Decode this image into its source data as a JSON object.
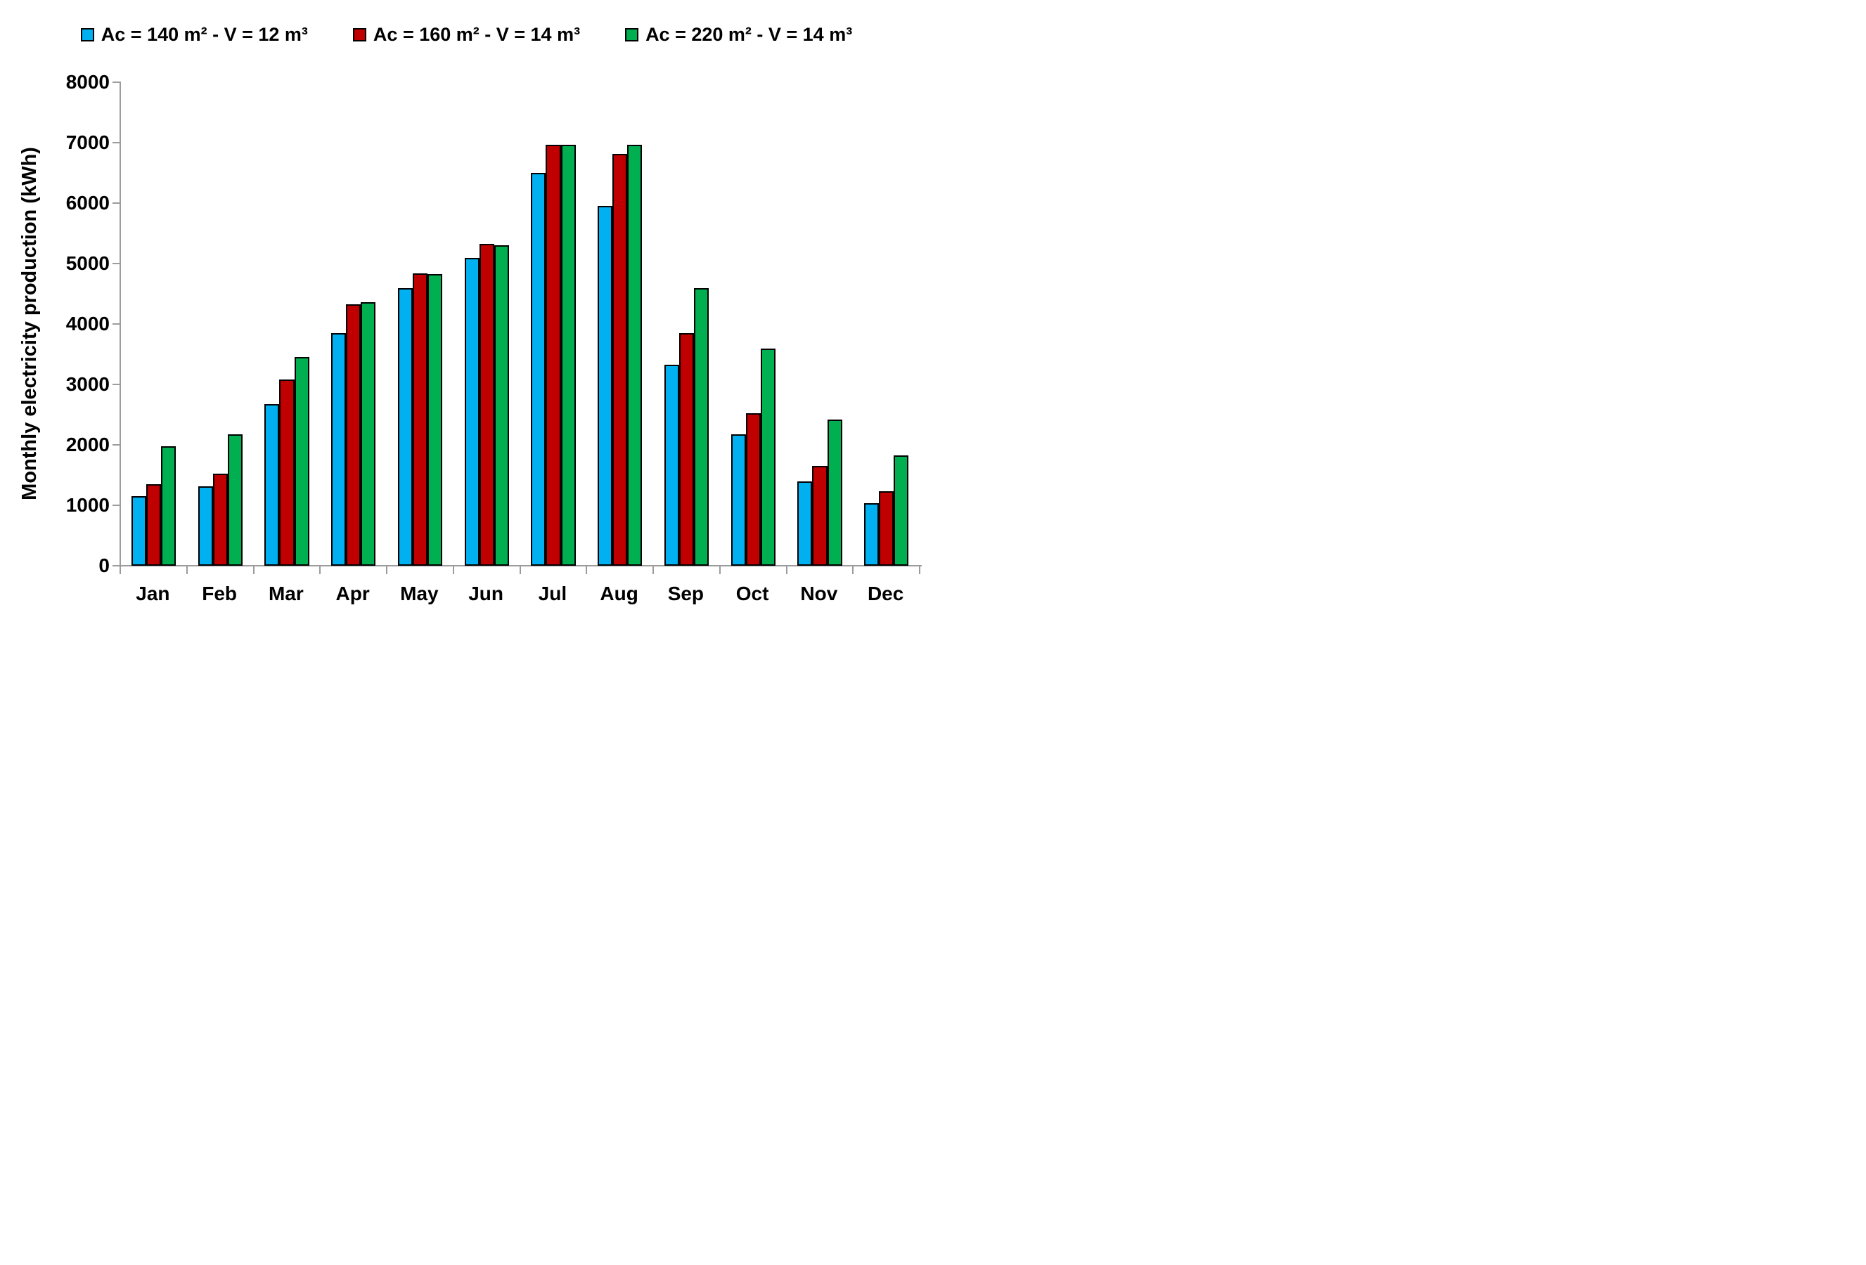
{
  "chart_data": {
    "type": "bar",
    "title": "",
    "xlabel": "",
    "ylabel": "Monthly electricity production (kWh)",
    "ylim": [
      0,
      8000
    ],
    "yticks": [
      0,
      1000,
      2000,
      3000,
      4000,
      5000,
      6000,
      7000,
      8000
    ],
    "grid": false,
    "legend_position": "top",
    "axis_color": "#9c9c9c",
    "bar_border_color": "#000000",
    "categories": [
      "Jan",
      "Feb",
      "Mar",
      "Apr",
      "May",
      "Jun",
      "Jul",
      "Aug",
      "Sep",
      "Oct",
      "Nov",
      "Dec"
    ],
    "series": [
      {
        "name": "Ac = 140 m² - V = 12 m³",
        "color": "#00B0F0",
        "values": [
          1150,
          1310,
          2670,
          3850,
          4590,
          5090,
          6500,
          5950,
          3330,
          2170,
          1400,
          1040
        ]
      },
      {
        "name": "Ac = 160 m² - V = 14 m³",
        "color": "#C00000",
        "values": [
          1350,
          1520,
          3080,
          4330,
          4840,
          5320,
          6970,
          6810,
          3850,
          2520,
          1650,
          1230
        ]
      },
      {
        "name": "Ac = 220 m² - V = 14 m³",
        "color": "#00B050",
        "values": [
          1980,
          2180,
          3450,
          4360,
          4830,
          5300,
          6960,
          6970,
          4590,
          3590,
          2420,
          1830
        ]
      }
    ]
  }
}
